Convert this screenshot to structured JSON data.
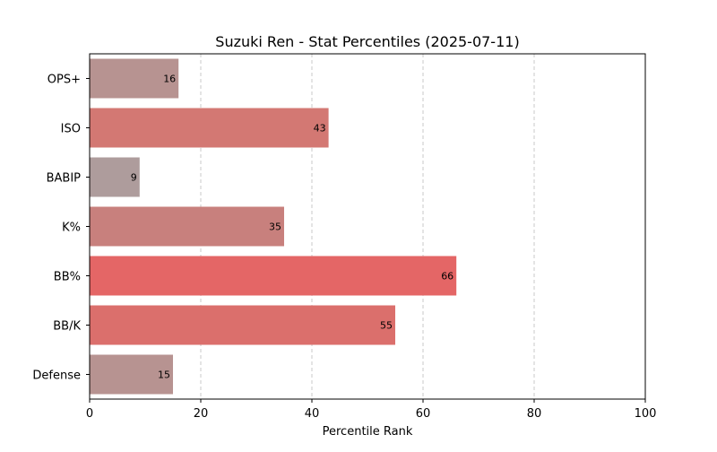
{
  "chart_data": {
    "type": "bar",
    "orientation": "horizontal",
    "title": "Suzuki Ren - Stat Percentiles (2025-07-11)",
    "xlabel": "Percentile Rank",
    "ylabel": "",
    "xlim": [
      0,
      100
    ],
    "xticks": [
      0,
      20,
      40,
      60,
      80,
      100
    ],
    "grid": "x-dashed",
    "categories": [
      "OPS+",
      "ISO",
      "BABIP",
      "K%",
      "BB%",
      "BB/K",
      "Defense"
    ],
    "values": [
      16,
      43,
      9,
      35,
      66,
      55,
      15
    ],
    "colors": [
      "#b79391",
      "#d37873",
      "#ae9c9c",
      "#c8807d",
      "#e46666",
      "#db6f6c",
      "#b79391"
    ]
  }
}
